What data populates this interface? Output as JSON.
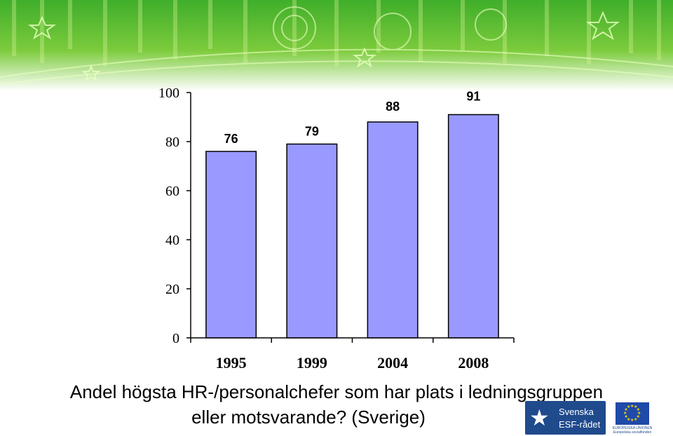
{
  "chart_data": {
    "type": "bar",
    "categories": [
      "1995",
      "1999",
      "2004",
      "2008"
    ],
    "values": [
      76,
      79,
      88,
      91
    ],
    "data_labels": [
      "76",
      "79",
      "88",
      "91"
    ],
    "ylim": [
      0,
      100
    ],
    "yticks": [
      0,
      20,
      40,
      60,
      80,
      100
    ],
    "grid": false,
    "bar_color": "#9999ff",
    "title": "",
    "xlabel": "",
    "ylabel": ""
  },
  "caption": {
    "line1": "Andel högsta HR-/personalchefer som har plats i ledningsgruppen",
    "line2": "eller motsvarande? (Sverige)"
  },
  "logos": {
    "esf_line1": "Svenska",
    "esf_line2": "ESF-rådet",
    "eu_line1": "EUROPEISKA UNIONEN",
    "eu_line2": "Europeiska socialfonden"
  },
  "colors": {
    "banner_green": "#4cb82f",
    "banner_light": "#b8e06a"
  }
}
